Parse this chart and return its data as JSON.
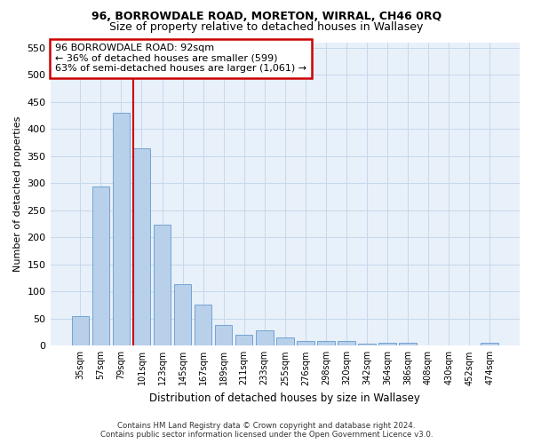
{
  "title": "96, BORROWDALE ROAD, MORETON, WIRRAL, CH46 0RQ",
  "subtitle": "Size of property relative to detached houses in Wallasey",
  "xlabel": "Distribution of detached houses by size in Wallasey",
  "ylabel": "Number of detached properties",
  "footer_line1": "Contains HM Land Registry data © Crown copyright and database right 2024.",
  "footer_line2": "Contains public sector information licensed under the Open Government Licence v3.0.",
  "categories": [
    "35sqm",
    "57sqm",
    "79sqm",
    "101sqm",
    "123sqm",
    "145sqm",
    "167sqm",
    "189sqm",
    "211sqm",
    "233sqm",
    "255sqm",
    "276sqm",
    "298sqm",
    "320sqm",
    "342sqm",
    "364sqm",
    "386sqm",
    "408sqm",
    "430sqm",
    "452sqm",
    "474sqm"
  ],
  "values": [
    55,
    293,
    430,
    365,
    224,
    113,
    76,
    38,
    20,
    28,
    16,
    9,
    9,
    8,
    3,
    5,
    5,
    0,
    0,
    0,
    5
  ],
  "bar_color": "#b8d0ea",
  "bar_edge_color": "#6699cc",
  "grid_color": "#c5d8ec",
  "background_color": "#e8f0fa",
  "vline_color": "#cc0000",
  "vline_x_index": 3,
  "annotation_text": "96 BORROWDALE ROAD: 92sqm\n← 36% of detached houses are smaller (599)\n63% of semi-detached houses are larger (1,061) →",
  "annotation_box_color": "#ffffff",
  "annotation_box_edge": "#cc0000",
  "ylim": [
    0,
    560
  ],
  "yticks": [
    0,
    50,
    100,
    150,
    200,
    250,
    300,
    350,
    400,
    450,
    500,
    550
  ],
  "title_fontsize": 9,
  "subtitle_fontsize": 9
}
